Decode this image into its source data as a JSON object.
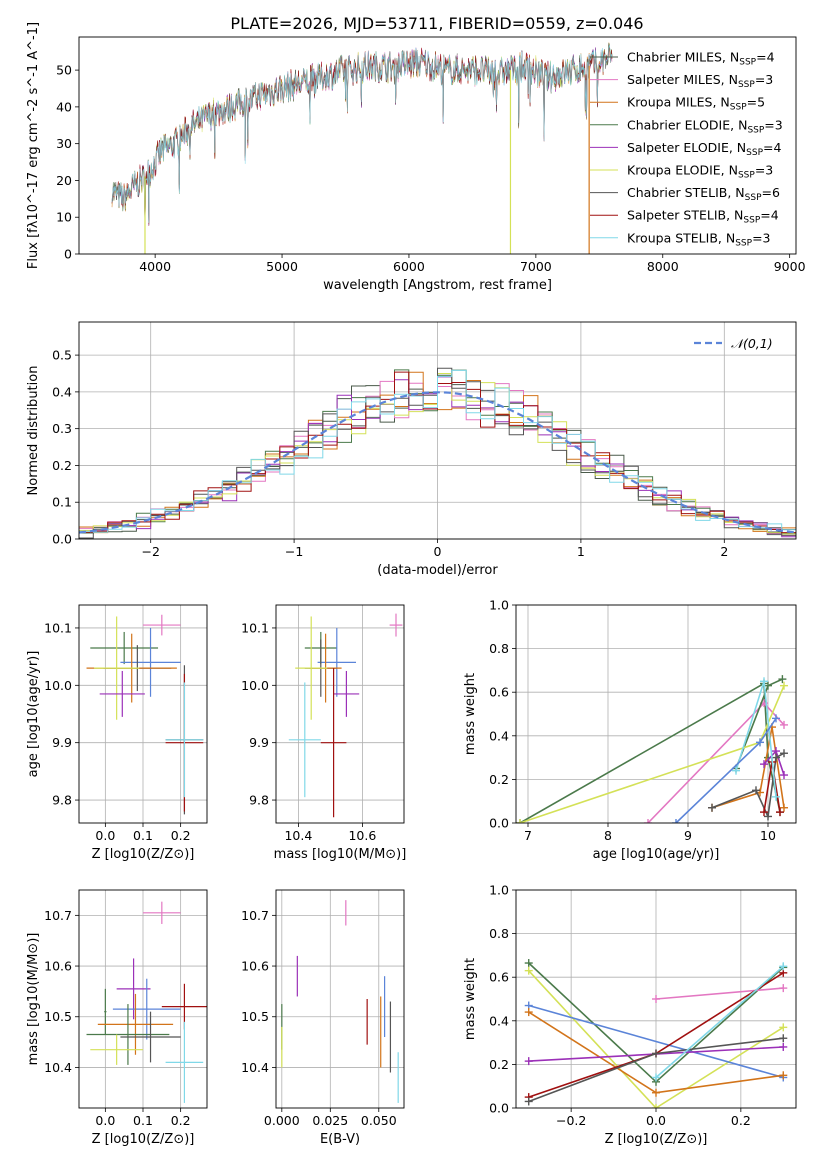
{
  "figure_title": "PLATE=2026, MJD=53711, FIBERID=0559, z=0.046",
  "models": [
    {
      "name": "Chabrier MILES",
      "nssp": "4",
      "color": "#4a5a4a"
    },
    {
      "name": "Salpeter MILES",
      "nssp": "3",
      "color": "#e377c2"
    },
    {
      "name": "Kroupa MILES",
      "nssp": "5",
      "color": "#d2741a"
    },
    {
      "name": "Chabrier ELODIE",
      "nssp": "3",
      "color": "#4b7a4b"
    },
    {
      "name": "Salpeter ELODIE",
      "nssp": "4",
      "color": "#9b30b8"
    },
    {
      "name": "Kroupa ELODIE",
      "nssp": "3",
      "color": "#d4e157"
    },
    {
      "name": "Chabrier STELIB",
      "nssp": "6",
      "color": "#555555"
    },
    {
      "name": "Salpeter STELIB",
      "nssp": "4",
      "color": "#a01010"
    },
    {
      "name": "Kroupa STELIB",
      "nssp": "3",
      "color": "#80d8e8"
    }
  ],
  "chart_data": [
    {
      "id": "spectrum",
      "type": "line",
      "title": "PLATE=2026, MJD=53711, FIBERID=0559, z=0.046",
      "xlabel": "wavelength [Angstrom, rest frame]",
      "ylabel": "Flux [fλ10^-17 erg cm^-2 s^-1 A^-1]",
      "xlim": [
        3400,
        9050
      ],
      "ylim": [
        0,
        59
      ],
      "xticks": [
        4000,
        5000,
        6000,
        7000,
        8000,
        9000
      ],
      "yticks": [
        0,
        10,
        20,
        30,
        40,
        50
      ],
      "legend_position": "right",
      "legend_labels": [
        "Chabrier MILES, N_SSP=4",
        "Salpeter MILES, N_SSP=3",
        "Kroupa MILES, N_SSP=5",
        "Chabrier ELODIE, N_SSP=3",
        "Salpeter ELODIE, N_SSP=4",
        "Kroupa ELODIE, N_SSP=3",
        "Chabrier STELIB, N_SSP=6",
        "Salpeter STELIB, N_SSP=4",
        "Kroupa STELIB, N_SSP=3"
      ],
      "continuum": {
        "x": [
          3660,
          3750,
          3850,
          3950,
          4050,
          4150,
          4300,
          4450,
          4600,
          4750,
          4900,
          5100,
          5300,
          5500,
          5700,
          5900,
          6100,
          6300,
          6500,
          6700,
          6900,
          7100,
          7300,
          7500,
          7600
        ],
        "y": [
          17,
          15,
          19,
          22,
          28,
          30,
          35,
          38,
          40,
          42,
          44,
          46,
          48,
          50,
          51,
          51,
          52,
          50,
          50,
          49,
          51,
          48,
          50,
          52,
          54
        ]
      },
      "dropouts": [
        {
          "model": "Kroupa ELODIE",
          "x": 6800,
          "y": 0
        },
        {
          "model": "Kroupa MILES",
          "x": 7420,
          "y": 0
        },
        {
          "model": "Kroupa ELODIE",
          "x": 3920,
          "y": 0
        }
      ]
    },
    {
      "id": "residuals",
      "type": "step",
      "xlabel": "(data-model)/error",
      "ylabel": "Normed distribution",
      "xlim": [
        -2.5,
        2.5
      ],
      "ylim": [
        0,
        0.59
      ],
      "xticks": [
        -2,
        -1,
        0,
        1,
        2
      ],
      "yticks": [
        0.0,
        0.1,
        0.2,
        0.3,
        0.4,
        0.5
      ],
      "bin_width": 0.1,
      "legend_label": "N(0,1)",
      "legend_position": "top-right",
      "reference_color": "#5b84d8"
    },
    {
      "id": "age_vs_z",
      "type": "errorbar",
      "xlabel": "Z [log10(Z/Z⊙)]",
      "ylabel": "age [log10(age/yr)]",
      "xlim": [
        -0.07,
        0.27
      ],
      "ylim": [
        9.76,
        10.14
      ],
      "xticks": [
        0.0,
        0.1,
        0.2
      ],
      "yticks": [
        9.8,
        9.9,
        10.0,
        10.1
      ],
      "points": [
        {
          "x": 0.15,
          "y": 10.105,
          "xerr": 0.05,
          "yerr": 0.018,
          "color": "#e377c2"
        },
        {
          "x": 0.05,
          "y": 10.065,
          "xerr": 0.09,
          "yerr": 0.028,
          "color": "#4b7a4b"
        },
        {
          "x": 0.12,
          "y": 10.04,
          "xerr": 0.08,
          "yerr": 0.06,
          "color": "#5b84d8"
        },
        {
          "x": 0.085,
          "y": 10.03,
          "xerr": 0.09,
          "yerr": 0.04,
          "color": "#555555"
        },
        {
          "x": 0.07,
          "y": 10.03,
          "xerr": 0.12,
          "yerr": 0.06,
          "color": "#d2741a"
        },
        {
          "x": 0.03,
          "y": 10.03,
          "xerr": 0.06,
          "yerr": 0.09,
          "color": "#d4e157"
        },
        {
          "x": 0.045,
          "y": 9.985,
          "xerr": 0.06,
          "yerr": 0.04,
          "color": "#9b30b8"
        },
        {
          "x": 0.21,
          "y": 9.905,
          "xerr": 0.05,
          "yerr": 0.13,
          "color": "#555555"
        },
        {
          "x": 0.21,
          "y": 9.9,
          "xerr": 0.05,
          "yerr": 0.12,
          "color": "#a01010"
        },
        {
          "x": 0.21,
          "y": 9.905,
          "xerr": 0.05,
          "yerr": 0.1,
          "color": "#80d8e8"
        }
      ]
    },
    {
      "id": "age_vs_mass",
      "type": "errorbar",
      "xlabel": "mass [log10(M/M⊙)]",
      "ylabel": "",
      "xlim": [
        10.33,
        10.73
      ],
      "ylim": [
        9.76,
        10.14
      ],
      "xticks": [
        10.4,
        10.6
      ],
      "yticks": [
        9.8,
        9.9,
        10.0,
        10.1
      ],
      "points": [
        {
          "x": 10.705,
          "y": 10.105,
          "xerr": 0.02,
          "yerr": 0.02,
          "color": "#e377c2"
        },
        {
          "x": 10.47,
          "y": 10.065,
          "xerr": 0.05,
          "yerr": 0.028,
          "color": "#4b7a4b"
        },
        {
          "x": 10.52,
          "y": 10.04,
          "xerr": 0.06,
          "yerr": 0.06,
          "color": "#5b84d8"
        },
        {
          "x": 10.47,
          "y": 10.03,
          "xerr": 0.05,
          "yerr": 0.05,
          "color": "#555555"
        },
        {
          "x": 10.485,
          "y": 10.03,
          "xerr": 0.05,
          "yerr": 0.06,
          "color": "#d2741a"
        },
        {
          "x": 10.44,
          "y": 10.03,
          "xerr": 0.05,
          "yerr": 0.09,
          "color": "#d4e157"
        },
        {
          "x": 10.55,
          "y": 9.985,
          "xerr": 0.04,
          "yerr": 0.04,
          "color": "#9b30b8"
        },
        {
          "x": 10.51,
          "y": 9.9,
          "xerr": 0.04,
          "yerr": 0.13,
          "color": "#a01010"
        },
        {
          "x": 10.42,
          "y": 9.905,
          "xerr": 0.05,
          "yerr": 0.1,
          "color": "#80d8e8"
        }
      ]
    },
    {
      "id": "weight_vs_age",
      "type": "line",
      "xlabel": "age [log10(age/yr)]",
      "ylabel": "mass weight",
      "xlim": [
        6.85,
        10.35
      ],
      "ylim": [
        0.0,
        1.0
      ],
      "xticks": [
        7,
        8,
        9,
        10
      ],
      "yticks": [
        0.0,
        0.2,
        0.4,
        0.6,
        0.8,
        1.0
      ],
      "series": [
        {
          "model": "Chabrier MILES",
          "color": "#4b7a4b",
          "x": [
            6.9,
            9.95,
            10.0,
            10.15
          ],
          "y": [
            0.0,
            0.64,
            0.3,
            0.05
          ]
        },
        {
          "model": "Salpeter MILES",
          "color": "#e377c2",
          "x": [
            8.5,
            9.95,
            10.2
          ],
          "y": [
            0.0,
            0.55,
            0.45
          ]
        },
        {
          "model": "Kroupa MILES",
          "color": "#d2741a",
          "x": [
            9.3,
            9.9,
            10.05,
            10.2
          ],
          "y": [
            0.07,
            0.14,
            0.44,
            0.07
          ]
        },
        {
          "model": "Chabrier ELODIE",
          "color": "#4b7a4b",
          "x": [
            9.6,
            10.0,
            10.18
          ],
          "y": [
            0.25,
            0.63,
            0.66
          ]
        },
        {
          "model": "Salpeter ELODIE",
          "color": "#9b30b8",
          "x": [
            9.95,
            10.1,
            10.2
          ],
          "y": [
            0.27,
            0.33,
            0.22
          ]
        },
        {
          "model": "Kroupa ELODIE",
          "color": "#d4e157",
          "x": [
            6.9,
            9.9,
            10.2
          ],
          "y": [
            0.0,
            0.37,
            0.63
          ]
        },
        {
          "model": "Chabrier STELIB",
          "color": "#555555",
          "x": [
            9.3,
            9.85,
            10.0,
            10.1,
            10.2
          ],
          "y": [
            0.07,
            0.15,
            0.03,
            0.3,
            0.32
          ]
        },
        {
          "model": "Salpeter STELIB",
          "color": "#a01010",
          "x": [
            9.95,
            10.05,
            10.15
          ],
          "y": [
            0.05,
            0.28,
            0.05
          ]
        },
        {
          "model": "Kroupa STELIB",
          "color": "#80d8e8",
          "x": [
            9.6,
            9.95,
            10.1
          ],
          "y": [
            0.24,
            0.65,
            0.12
          ]
        },
        {
          "model": "Chabrier MILES",
          "color": "#5b84d8",
          "x": [
            8.85,
            9.9,
            10.1
          ],
          "y": [
            0.0,
            0.37,
            0.48
          ]
        }
      ]
    },
    {
      "id": "mass_vs_z",
      "type": "errorbar",
      "xlabel": "Z [log10(Z/Z⊙)]",
      "ylabel": "mass [log10(M/M⊙)]",
      "xlim": [
        -0.07,
        0.27
      ],
      "ylim": [
        10.32,
        10.75
      ],
      "xticks": [
        0.0,
        0.1,
        0.2
      ],
      "yticks": [
        10.4,
        10.5,
        10.6,
        10.7
      ],
      "points": [
        {
          "x": 0.15,
          "y": 10.705,
          "xerr": 0.05,
          "yerr": 0.022,
          "color": "#e377c2"
        },
        {
          "x": 0.075,
          "y": 10.555,
          "xerr": 0.045,
          "yerr": 0.06,
          "color": "#9b30b8"
        },
        {
          "x": 0.0,
          "y": 10.51,
          "xerr": 0.003,
          "yerr": 0.045,
          "color": "#4b7a4b"
        },
        {
          "x": 0.11,
          "y": 10.515,
          "xerr": 0.09,
          "yerr": 0.06,
          "color": "#5b84d8"
        },
        {
          "x": 0.21,
          "y": 10.52,
          "xerr": 0.06,
          "yerr": 0.045,
          "color": "#a01010"
        },
        {
          "x": 0.08,
          "y": 10.485,
          "xerr": 0.1,
          "yerr": 0.06,
          "color": "#d2741a"
        },
        {
          "x": 0.06,
          "y": 10.465,
          "xerr": 0.11,
          "yerr": 0.06,
          "color": "#4b7a4b"
        },
        {
          "x": 0.12,
          "y": 10.46,
          "xerr": 0.08,
          "yerr": 0.05,
          "color": "#555555"
        },
        {
          "x": 0.03,
          "y": 10.435,
          "xerr": 0.07,
          "yerr": 0.03,
          "color": "#d4e157"
        },
        {
          "x": 0.21,
          "y": 10.41,
          "xerr": 0.05,
          "yerr": 0.08,
          "color": "#80d8e8"
        }
      ]
    },
    {
      "id": "mass_vs_ebv",
      "type": "errorbar",
      "xlabel": "E(B-V)",
      "ylabel": "",
      "xlim": [
        -0.003,
        0.063
      ],
      "ylim": [
        10.32,
        10.75
      ],
      "xticks": [
        0.0,
        0.025,
        0.05
      ],
      "xticklabels": [
        "0.000",
        "0.025",
        "0.050"
      ],
      "yticks": [
        10.4,
        10.5,
        10.6,
        10.7
      ],
      "points": [
        {
          "x": 0.033,
          "y": 10.705,
          "yerr": 0.025,
          "color": "#e377c2"
        },
        {
          "x": 0.008,
          "y": 10.58,
          "yerr": 0.04,
          "color": "#9b30b8"
        },
        {
          "x": 0.0,
          "y": 10.48,
          "yerr": 0.045,
          "color": "#4b7a4b"
        },
        {
          "x": 0.0,
          "y": 10.44,
          "yerr": 0.04,
          "color": "#d4e157"
        },
        {
          "x": 0.053,
          "y": 10.52,
          "yerr": 0.06,
          "color": "#5b84d8"
        },
        {
          "x": 0.044,
          "y": 10.49,
          "yerr": 0.045,
          "color": "#a01010"
        },
        {
          "x": 0.051,
          "y": 10.47,
          "yerr": 0.07,
          "color": "#d2741a"
        },
        {
          "x": 0.056,
          "y": 10.46,
          "yerr": 0.07,
          "color": "#555555"
        },
        {
          "x": 0.06,
          "y": 10.38,
          "yerr": 0.05,
          "color": "#80d8e8"
        }
      ]
    },
    {
      "id": "weight_vs_z",
      "type": "line",
      "xlabel": "Z [log10(Z/Z⊙)]",
      "ylabel": "mass weight",
      "xlim": [
        -0.33,
        0.33
      ],
      "ylim": [
        0.0,
        1.0
      ],
      "xticks": [
        -0.2,
        0.0,
        0.2
      ],
      "yticks": [
        0.0,
        0.2,
        0.4,
        0.6,
        0.8,
        1.0
      ],
      "series": [
        {
          "model": "Chabrier ELODIE",
          "color": "#4b7a4b",
          "x": [
            -0.3,
            0.0,
            0.3
          ],
          "y": [
            0.665,
            0.12,
            0.645
          ]
        },
        {
          "model": "Kroupa ELODIE",
          "color": "#d4e157",
          "x": [
            -0.3,
            0.0,
            0.3
          ],
          "y": [
            0.63,
            0.0,
            0.37
          ]
        },
        {
          "model": "Salpeter MILES",
          "color": "#e377c2",
          "x": [
            0.0,
            0.3
          ],
          "y": [
            0.5,
            0.55
          ]
        },
        {
          "model": "Chabrier MILES",
          "color": "#5b84d8",
          "x": [
            -0.3,
            0.3
          ],
          "y": [
            0.47,
            0.14
          ]
        },
        {
          "model": "Kroupa MILES",
          "color": "#d2741a",
          "x": [
            -0.3,
            0.0,
            0.3
          ],
          "y": [
            0.44,
            0.07,
            0.15
          ]
        },
        {
          "model": "Salpeter ELODIE",
          "color": "#9b30b8",
          "x": [
            -0.3,
            0.3
          ],
          "y": [
            0.215,
            0.28
          ]
        },
        {
          "model": "Salpeter STELIB",
          "color": "#a01010",
          "x": [
            -0.3,
            0.0,
            0.3
          ],
          "y": [
            0.05,
            0.25,
            0.62
          ]
        },
        {
          "model": "Chabrier STELIB",
          "color": "#555555",
          "x": [
            -0.3,
            0.0,
            0.3
          ],
          "y": [
            0.03,
            0.25,
            0.32
          ]
        },
        {
          "model": "Kroupa STELIB",
          "color": "#80d8e8",
          "x": [
            0.0,
            0.3
          ],
          "y": [
            0.14,
            0.65
          ]
        }
      ]
    }
  ]
}
